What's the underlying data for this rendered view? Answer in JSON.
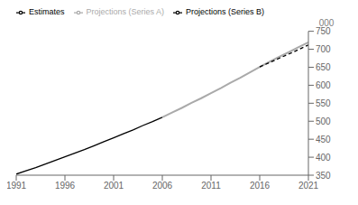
{
  "chart_data": {
    "type": "line",
    "ylabel": "000",
    "x": [
      1991,
      1992,
      1993,
      1994,
      1995,
      1996,
      1997,
      1998,
      1999,
      2000,
      2001,
      2002,
      2003,
      2004,
      2005,
      2006,
      2007,
      2008,
      2009,
      2010,
      2011,
      2012,
      2013,
      2014,
      2015,
      2016,
      2017,
      2018,
      2019,
      2020,
      2021
    ],
    "series": [
      {
        "name": "Estimates",
        "color": "#000000",
        "line_style": "solid",
        "values": [
          353,
          362,
          371,
          381,
          391,
          401,
          411,
          421,
          432,
          443,
          454,
          465,
          476,
          488,
          499,
          511,
          null,
          null,
          null,
          null,
          null,
          null,
          null,
          null,
          null,
          null,
          null,
          null,
          null,
          null,
          null
        ]
      },
      {
        "name": "Projections (Series A)",
        "color": "#aaaaaa",
        "line_style": "solid",
        "values": [
          null,
          null,
          null,
          null,
          null,
          null,
          null,
          null,
          null,
          null,
          null,
          null,
          null,
          null,
          null,
          511,
          524,
          537,
          551,
          564,
          578,
          592,
          607,
          621,
          636,
          651,
          665,
          679,
          692,
          706,
          719
        ]
      },
      {
        "name": "Projections (Series B)",
        "color": "#000000",
        "line_style": "dashed",
        "values": [
          null,
          null,
          null,
          null,
          null,
          null,
          null,
          null,
          null,
          null,
          null,
          null,
          null,
          null,
          null,
          null,
          null,
          null,
          null,
          null,
          null,
          null,
          null,
          null,
          null,
          651,
          663,
          675,
          687,
          699,
          712
        ]
      }
    ],
    "xlim": [
      1991,
      2021
    ],
    "ylim": [
      350,
      750
    ],
    "xticks": [
      1991,
      1996,
      2001,
      2006,
      2011,
      2016,
      2021
    ],
    "yticks": [
      350,
      400,
      450,
      500,
      550,
      600,
      650,
      700,
      750
    ],
    "legend": "upper left",
    "grid": false
  }
}
